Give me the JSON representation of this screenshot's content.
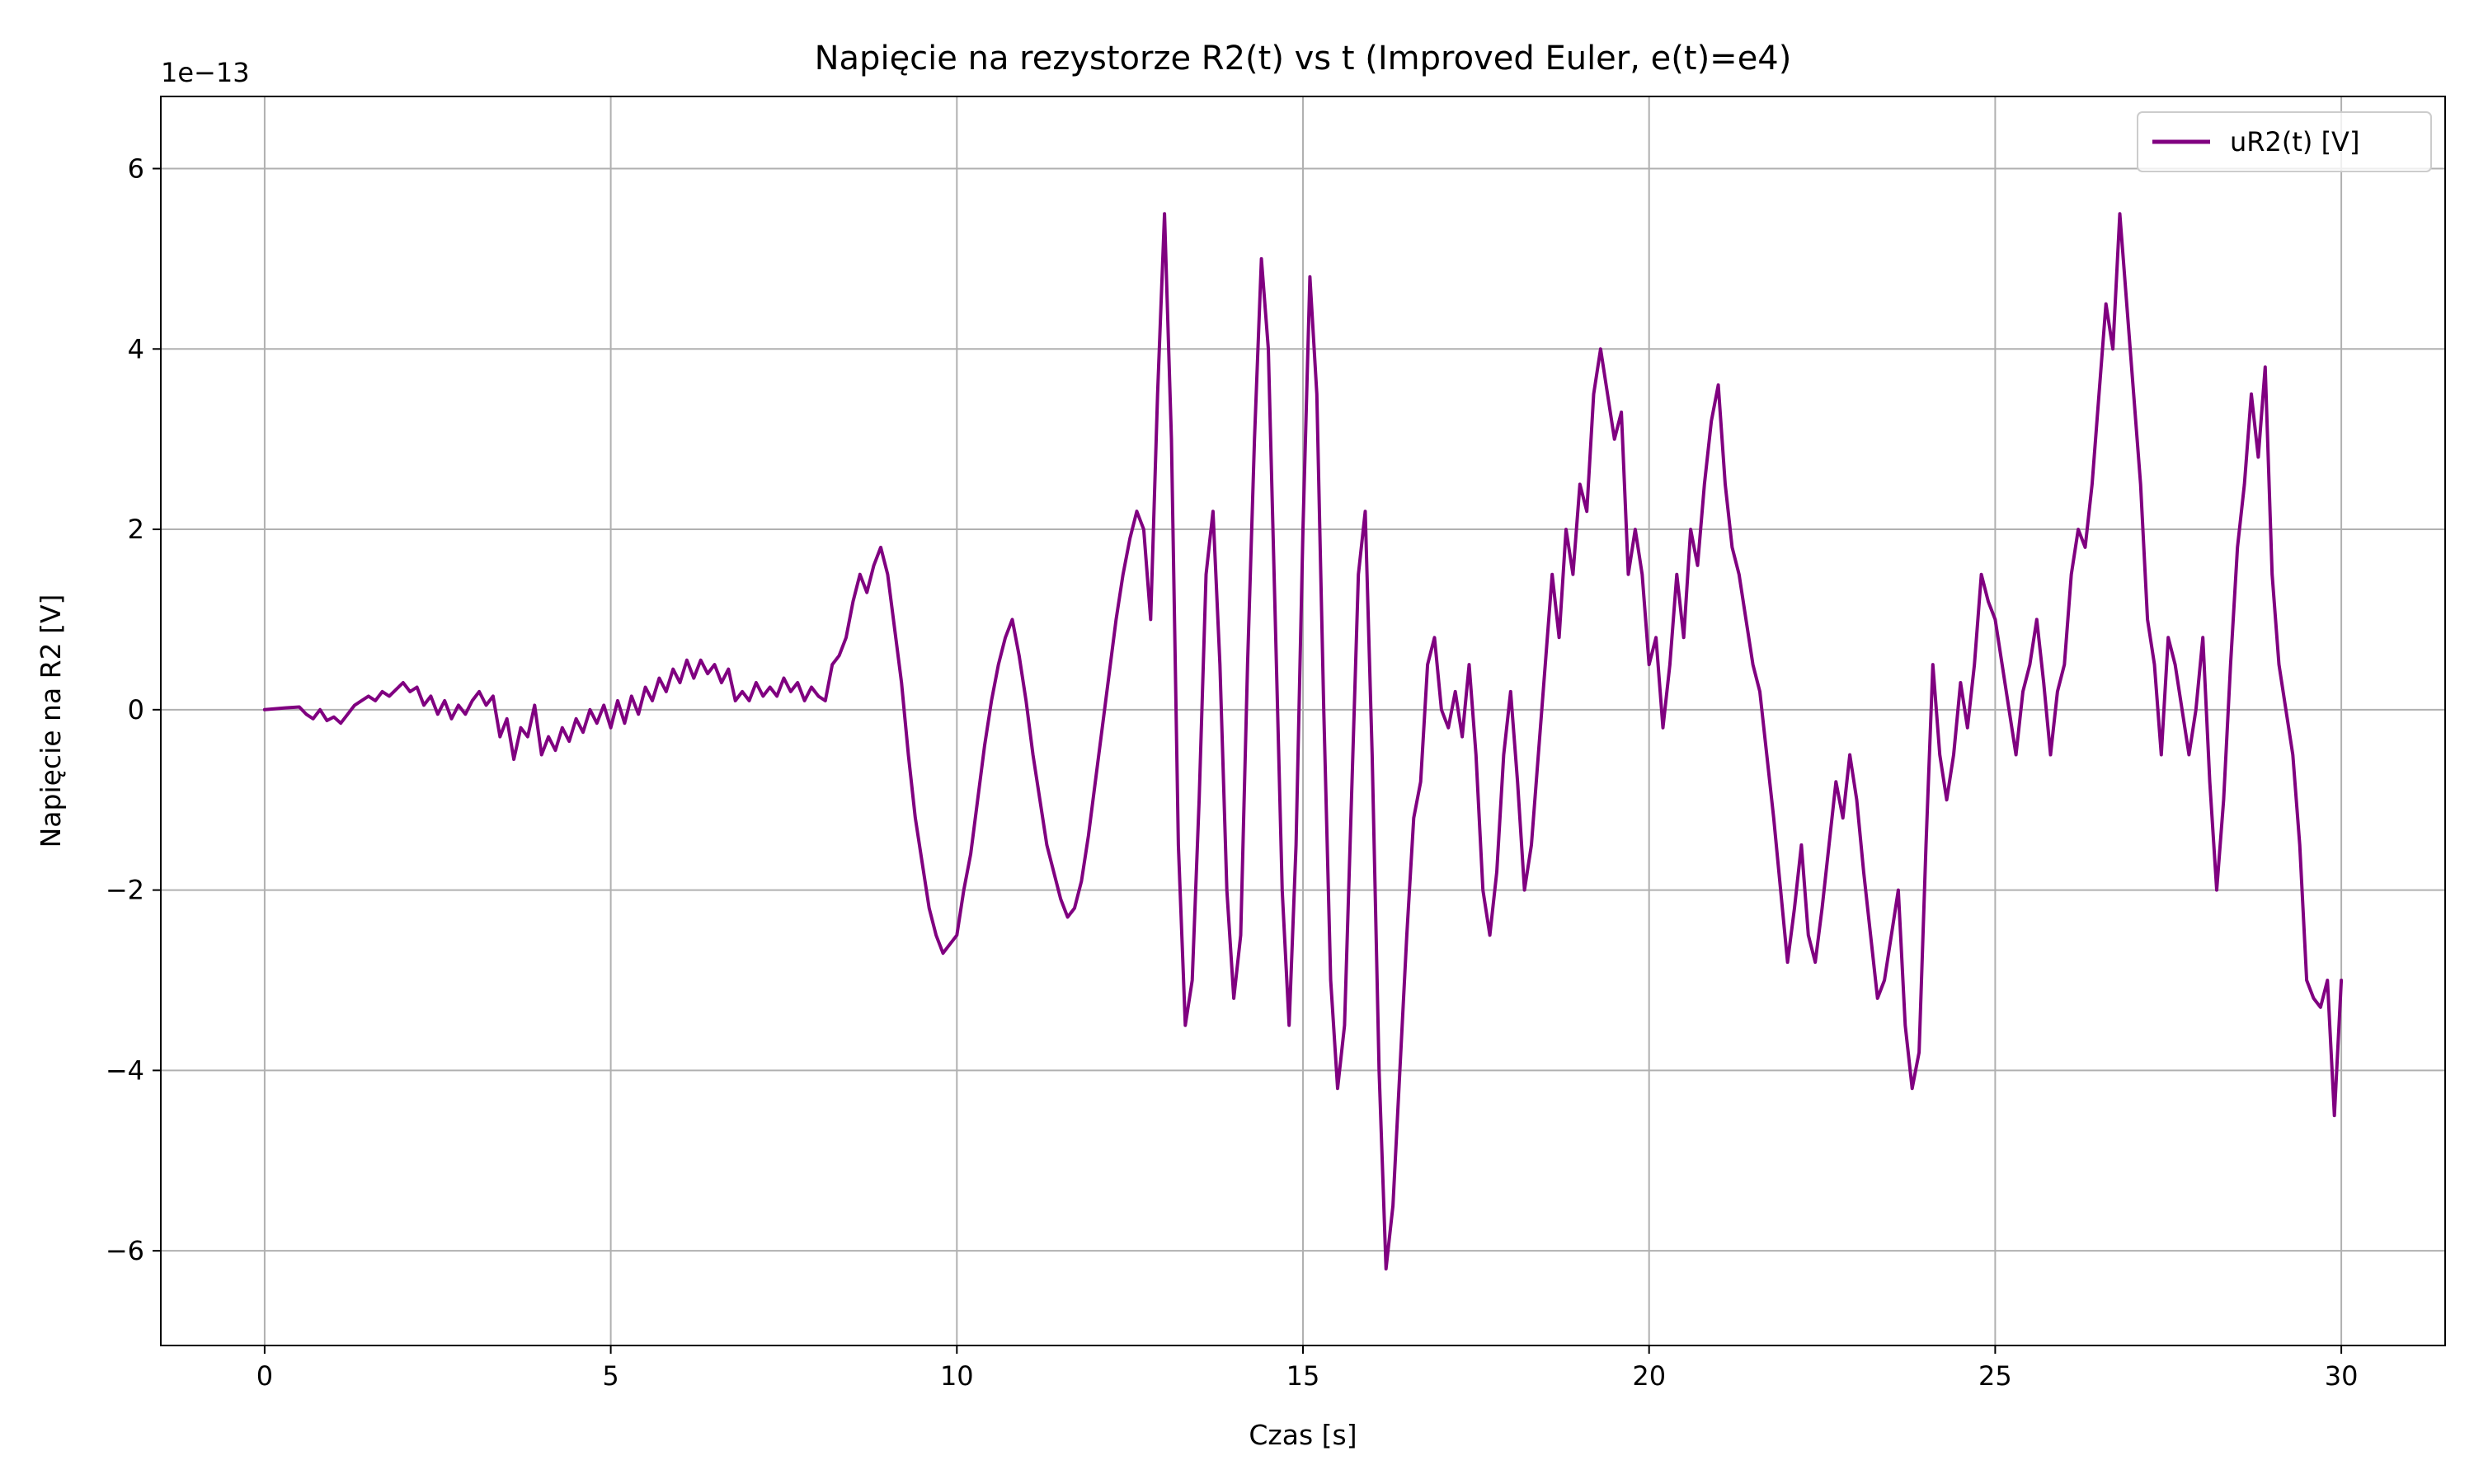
{
  "chart_data": {
    "type": "line",
    "title": "Napięcie na rezystorze R2(t) vs t (Improved Euler, e(t)=e4)",
    "xlabel": "Czas [s]",
    "ylabel": "Napięcie na R2 [V]",
    "y_multiplier_label": "1e−13",
    "y_scale_factor": 1e-13,
    "xlim": [
      -1.5,
      31.5
    ],
    "ylim": [
      -7.05,
      6.8
    ],
    "x_ticks": [
      0,
      5,
      10,
      15,
      20,
      25,
      30
    ],
    "x_tick_labels": [
      "0",
      "5",
      "10",
      "15",
      "20",
      "25",
      "30"
    ],
    "y_ticks": [
      -6,
      -4,
      -2,
      0,
      2,
      4,
      6
    ],
    "y_tick_labels": [
      "−6",
      "−4",
      "−2",
      "0",
      "2",
      "4",
      "6"
    ],
    "grid": true,
    "legend_position": "top-right",
    "series": [
      {
        "name": "uR2(t) [V]",
        "color": "#800080",
        "x": [
          0,
          0.3,
          0.5,
          0.6,
          0.7,
          0.8,
          0.9,
          1.0,
          1.1,
          1.2,
          1.3,
          1.4,
          1.5,
          1.6,
          1.7,
          1.8,
          2.0,
          2.1,
          2.2,
          2.3,
          2.4,
          2.5,
          2.6,
          2.7,
          2.8,
          2.9,
          3.0,
          3.1,
          3.2,
          3.3,
          3.4,
          3.5,
          3.6,
          3.7,
          3.8,
          3.9,
          4.0,
          4.1,
          4.2,
          4.3,
          4.4,
          4.5,
          4.6,
          4.7,
          4.8,
          4.9,
          5.0,
          5.1,
          5.2,
          5.3,
          5.4,
          5.5,
          5.6,
          5.7,
          5.8,
          5.9,
          6.0,
          6.1,
          6.2,
          6.3,
          6.4,
          6.5,
          6.6,
          6.7,
          6.8,
          6.9,
          7.0,
          7.1,
          7.2,
          7.3,
          7.4,
          7.5,
          7.6,
          7.7,
          7.8,
          7.9,
          8.0,
          8.1,
          8.2,
          8.3,
          8.4,
          8.5,
          8.6,
          8.7,
          8.8,
          8.9,
          9.0,
          9.1,
          9.2,
          9.3,
          9.4,
          9.5,
          9.6,
          9.7,
          9.8,
          9.9,
          10.0,
          10.1,
          10.2,
          10.3,
          10.4,
          10.5,
          10.6,
          10.7,
          10.8,
          10.9,
          11.0,
          11.1,
          11.2,
          11.3,
          11.4,
          11.5,
          11.6,
          11.7,
          11.8,
          11.9,
          12.0,
          12.1,
          12.2,
          12.3,
          12.4,
          12.5,
          12.6,
          12.7,
          12.8,
          12.9,
          13.0,
          13.1,
          13.2,
          13.3,
          13.4,
          13.5,
          13.6,
          13.7,
          13.8,
          13.9,
          14.0,
          14.1,
          14.2,
          14.3,
          14.4,
          14.5,
          14.6,
          14.7,
          14.8,
          14.9,
          15.0,
          15.1,
          15.2,
          15.3,
          15.4,
          15.5,
          15.6,
          15.7,
          15.8,
          15.9,
          16.0,
          16.1,
          16.2,
          16.3,
          16.4,
          16.5,
          16.6,
          16.7,
          16.8,
          16.9,
          17.0,
          17.1,
          17.2,
          17.3,
          17.4,
          17.5,
          17.6,
          17.7,
          17.8,
          17.9,
          18.0,
          18.1,
          18.2,
          18.3,
          18.4,
          18.5,
          18.6,
          18.7,
          18.8,
          18.9,
          19.0,
          19.1,
          19.2,
          19.3,
          19.4,
          19.5,
          19.6,
          19.7,
          19.8,
          19.9,
          20.0,
          20.1,
          20.2,
          20.3,
          20.4,
          20.5,
          20.6,
          20.7,
          20.8,
          20.9,
          21.0,
          21.1,
          21.2,
          21.3,
          21.4,
          21.5,
          21.6,
          21.7,
          21.8,
          21.9,
          22.0,
          22.1,
          22.2,
          22.3,
          22.4,
          22.5,
          22.6,
          22.7,
          22.8,
          22.9,
          23.0,
          23.1,
          23.2,
          23.3,
          23.4,
          23.5,
          23.6,
          23.7,
          23.8,
          23.9,
          24.0,
          24.1,
          24.2,
          24.3,
          24.4,
          24.5,
          24.6,
          24.7,
          24.8,
          24.9,
          25.0,
          25.1,
          25.2,
          25.3,
          25.4,
          25.5,
          25.6,
          25.7,
          25.8,
          25.9,
          26.0,
          26.1,
          26.2,
          26.3,
          26.4,
          26.5,
          26.6,
          26.7,
          26.8,
          26.9,
          27.0,
          27.1,
          27.2,
          27.3,
          27.4,
          27.5,
          27.6,
          27.7,
          27.8,
          27.9,
          28.0,
          28.1,
          28.2,
          28.3,
          28.4,
          28.5,
          28.6,
          28.7,
          28.8,
          28.9,
          29.0,
          29.1,
          29.2,
          29.3,
          29.4,
          29.5,
          29.6,
          29.7,
          29.8,
          29.9,
          30.0
        ],
        "y": [
          0,
          0.02,
          0.03,
          -0.05,
          -0.1,
          0,
          -0.12,
          -0.08,
          -0.15,
          -0.05,
          0.05,
          0.1,
          0.15,
          0.1,
          0.2,
          0.15,
          0.3,
          0.2,
          0.25,
          0.05,
          0.15,
          -0.05,
          0.1,
          -0.1,
          0.05,
          -0.05,
          0.1,
          0.2,
          0.05,
          0.15,
          -0.3,
          -0.1,
          -0.55,
          -0.2,
          -0.3,
          0.05,
          -0.5,
          -0.3,
          -0.45,
          -0.2,
          -0.35,
          -0.1,
          -0.25,
          0,
          -0.15,
          0.05,
          -0.2,
          0.1,
          -0.15,
          0.15,
          -0.05,
          0.25,
          0.1,
          0.35,
          0.2,
          0.45,
          0.3,
          0.55,
          0.35,
          0.55,
          0.4,
          0.5,
          0.3,
          0.45,
          0.1,
          0.2,
          0.1,
          0.3,
          0.15,
          0.25,
          0.15,
          0.35,
          0.2,
          0.3,
          0.1,
          0.25,
          0.15,
          0.1,
          0.5,
          0.6,
          0.8,
          1.2,
          1.5,
          1.3,
          1.6,
          1.8,
          1.5,
          0.9,
          0.3,
          -0.5,
          -1.2,
          -1.7,
          -2.2,
          -2.5,
          -2.7,
          -2.6,
          -2.5,
          -2.0,
          -1.6,
          -1.0,
          -0.4,
          0.1,
          0.5,
          0.8,
          1.0,
          0.6,
          0.1,
          -0.5,
          -1.0,
          -1.5,
          -1.8,
          -2.1,
          -2.3,
          -2.2,
          -1.9,
          -1.4,
          -0.8,
          -0.2,
          0.4,
          1.0,
          1.5,
          1.9,
          2.2,
          2.0,
          1.0,
          3.5,
          5.5,
          3.0,
          -1.5,
          -3.5,
          -3.0,
          -1.0,
          1.5,
          2.2,
          0.5,
          -2.0,
          -3.2,
          -2.5,
          0.5,
          3.0,
          5.0,
          4.0,
          1.0,
          -2.0,
          -3.5,
          -1.5,
          2.0,
          4.8,
          3.5,
          0,
          -3.0,
          -4.2,
          -3.5,
          -1.0,
          1.5,
          2.2,
          -0.5,
          -4.0,
          -6.2,
          -5.5,
          -4.0,
          -2.5,
          -1.2,
          -0.8,
          0.5,
          0.8,
          0,
          -0.2,
          0.2,
          -0.3,
          0.5,
          -0.5,
          -2.0,
          -2.5,
          -1.8,
          -0.5,
          0.2,
          -0.8,
          -2.0,
          -1.5,
          -0.5,
          0.5,
          1.5,
          0.8,
          2.0,
          1.5,
          2.5,
          2.2,
          3.5,
          4.0,
          3.5,
          3.0,
          3.3,
          1.5,
          2.0,
          1.5,
          0.5,
          0.8,
          -0.2,
          0.5,
          1.5,
          0.8,
          2.0,
          1.6,
          2.5,
          3.2,
          3.6,
          2.5,
          1.8,
          1.5,
          1.0,
          0.5,
          0.2,
          -0.5,
          -1.2,
          -2.0,
          -2.8,
          -2.2,
          -1.5,
          -2.5,
          -2.8,
          -2.2,
          -1.5,
          -0.8,
          -1.2,
          -0.5,
          -1.0,
          -1.8,
          -2.5,
          -3.2,
          -3.0,
          -2.5,
          -2.0,
          -3.5,
          -4.2,
          -3.8,
          -1.5,
          0.5,
          -0.5,
          -1.0,
          -0.5,
          0.3,
          -0.2,
          0.5,
          1.5,
          1.2,
          1.0,
          0.5,
          0,
          -0.5,
          0.2,
          0.5,
          1.0,
          0.3,
          -0.5,
          0.2,
          0.5,
          1.5,
          2.0,
          1.8,
          2.5,
          3.5,
          4.5,
          4.0,
          5.5,
          4.5,
          3.5,
          2.5,
          1.0,
          0.5,
          -0.5,
          0.8,
          0.5,
          0,
          -0.5,
          0,
          0.8,
          -0.8,
          -2.0,
          -1.0,
          0.5,
          1.8,
          2.5,
          3.5,
          2.8,
          3.8,
          1.5,
          0.5,
          0,
          -0.5,
          -1.5,
          -3.0,
          -3.2,
          -3.3,
          -3.0,
          -4.5,
          -3.0
        ]
      }
    ]
  }
}
